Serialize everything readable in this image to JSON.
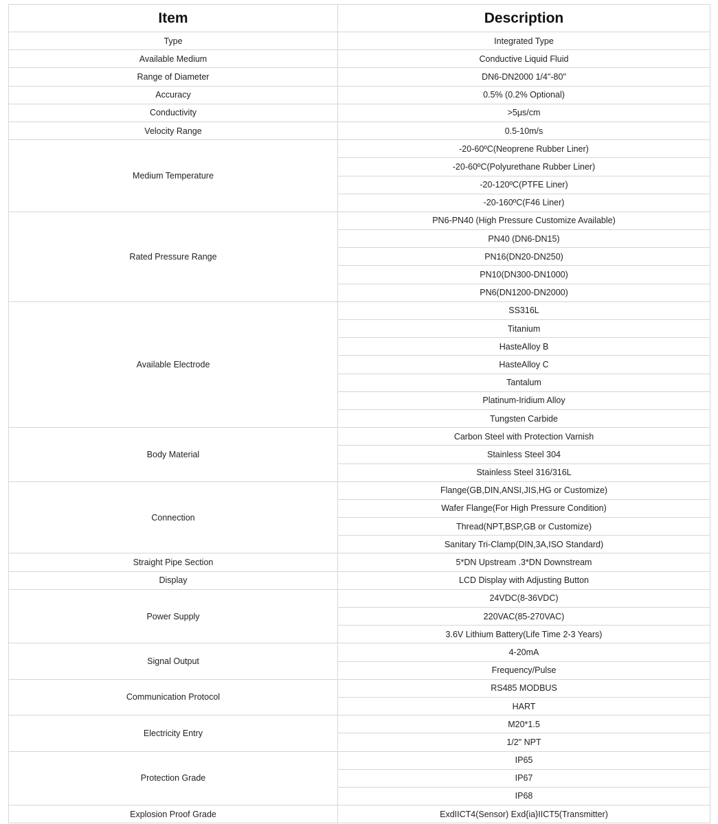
{
  "header": {
    "item": "Item",
    "description": "Description"
  },
  "rows": [
    {
      "item": "Type",
      "values": [
        "Integrated Type"
      ]
    },
    {
      "item": "Available Medium",
      "values": [
        "Conductive Liquid Fluid"
      ]
    },
    {
      "item": "Range of Diameter",
      "values": [
        "DN6-DN2000  1/4\"-80\""
      ]
    },
    {
      "item": "Accuracy",
      "values": [
        "0.5%  (0.2% Optional)"
      ]
    },
    {
      "item": "Conductivity",
      "values": [
        ">5μs/cm"
      ]
    },
    {
      "item": "Velocity Range",
      "values": [
        "0.5-10m/s"
      ]
    },
    {
      "item": "Medium Temperature",
      "values": [
        "-20-60ºC(Neoprene Rubber Liner)",
        "-20-60ºC(Polyurethane Rubber Liner)",
        "-20-120ºC(PTFE Liner)",
        "-20-160ºC(F46 Liner)"
      ]
    },
    {
      "item": "Rated Pressure Range",
      "values": [
        "PN6-PN40 (High Pressure Customize Available)",
        "PN40 (DN6-DN15)",
        "PN16(DN20-DN250)",
        "PN10(DN300-DN1000)",
        "PN6(DN1200-DN2000)"
      ]
    },
    {
      "item": "Available Electrode",
      "values": [
        "SS316L",
        "Titanium",
        "HasteAlloy B",
        "HasteAlloy C",
        "Tantalum",
        "Platinum-Iridium Alloy",
        "Tungsten Carbide"
      ]
    },
    {
      "item": "Body Material",
      "values": [
        "Carbon Steel with Protection Varnish",
        "Stainless Steel 304",
        "Stainless Steel 316/316L"
      ]
    },
    {
      "item": "Connection",
      "values": [
        "Flange(GB,DIN,ANSI,JIS,HG or Customize)",
        "Wafer Flange(For High Pressure Condition)",
        "Thread(NPT,BSP,GB or Customize)",
        "Sanitary Tri-Clamp(DIN,3A,ISO Standard)"
      ]
    },
    {
      "item": "Straight Pipe Section",
      "values": [
        "5*DN Upstream .3*DN Downstream"
      ]
    },
    {
      "item": "Display",
      "values": [
        "LCD Display with Adjusting Button"
      ]
    },
    {
      "item": "Power Supply",
      "values": [
        "24VDC(8-36VDC)",
        "220VAC(85-270VAC)",
        "3.6V Lithium Battery(Life Time 2-3 Years)"
      ]
    },
    {
      "item": "Signal Output",
      "values": [
        "4-20mA",
        "Frequency/Pulse"
      ]
    },
    {
      "item": "Communication Protocol",
      "values": [
        "RS485 MODBUS",
        "HART"
      ]
    },
    {
      "item": "Electricity Entry",
      "values": [
        "M20*1.5",
        "1/2\" NPT"
      ]
    },
    {
      "item": "Protection Grade",
      "values": [
        "IP65",
        "IP67",
        "IP68"
      ]
    },
    {
      "item": "Explosion Proof Grade",
      "values": [
        "ExdIICT4(Sensor) Exd{ia}IICT5(Transmitter)"
      ]
    }
  ]
}
